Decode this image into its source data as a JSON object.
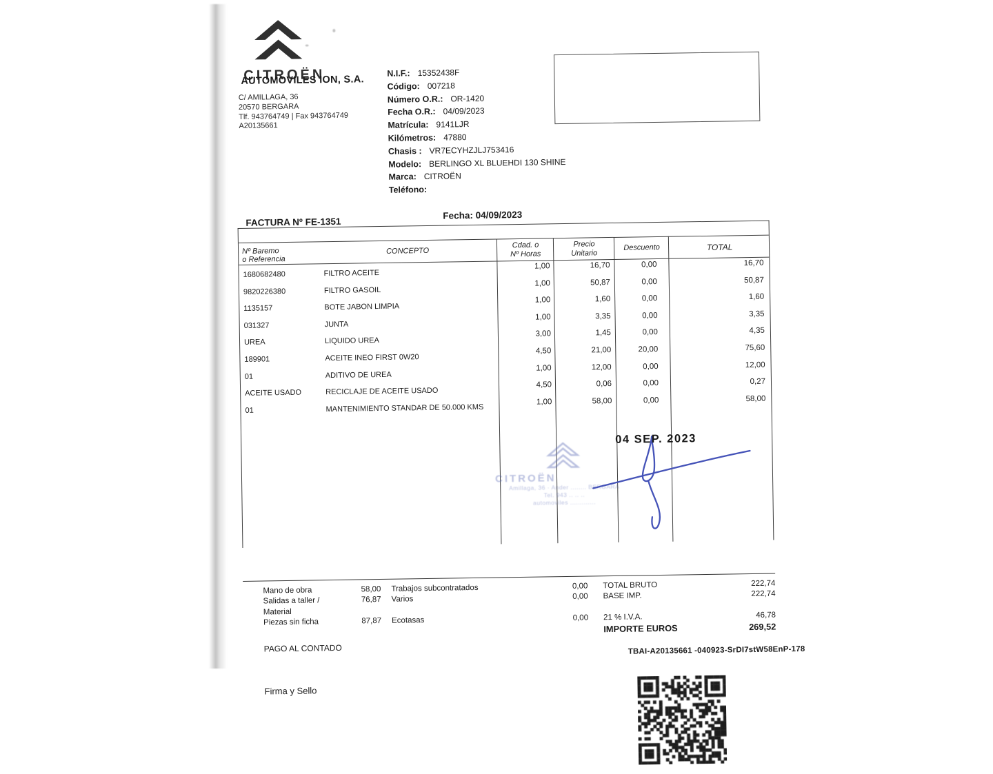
{
  "company": {
    "brand": "CITROËN",
    "name": "AUTOMOVILES ION, S.A.",
    "address_line1": "C/ AMILLAGA, 36",
    "address_line2": "20570 BERGARA",
    "address_line3": "Tlf. 943764749 | Fax 943764749",
    "address_line4": "A20135661"
  },
  "fields": [
    {
      "label": "N.I.F.:",
      "value": "15352438F"
    },
    {
      "label": "Código:",
      "value": "007218"
    },
    {
      "label": "Número O.R.:",
      "value": "OR-1420"
    },
    {
      "label": "Fecha O.R.:",
      "value": "04/09/2023"
    },
    {
      "label": "Matrícula:",
      "value": "9141LJR"
    },
    {
      "label": "Kilómetros:",
      "value": "47880"
    },
    {
      "label": "Chasis :",
      "value": "VR7ECYHZJLJ753416"
    },
    {
      "label": "Modelo:",
      "value": "BERLINGO XL BLUEHDI 130 SHINE"
    },
    {
      "label": "Marca:",
      "value": "CITROËN"
    },
    {
      "label": "Teléfono:",
      "value": ""
    }
  ],
  "invoice_header": {
    "title": "FACTURA Nº FE-1351",
    "date": "Fecha: 04/09/2023"
  },
  "table": {
    "headers": {
      "ref_line1": "Nº Baremo",
      "ref_line2": "o Referencia",
      "concept": "CONCEPTO",
      "qty_line1": "Cdad. o",
      "qty_line2": "Nº Horas",
      "price_line1": "Precio",
      "price_line2": "Unitario",
      "discount": "Descuento",
      "total": "TOTAL"
    },
    "rows": [
      {
        "ref": "1680682480",
        "concept": "FILTRO ACEITE",
        "qty": "1,00",
        "price": "16,70",
        "discount": "0,00",
        "total": "16,70"
      },
      {
        "ref": "9820226380",
        "concept": "FILTRO GASOIL",
        "qty": "1,00",
        "price": "50,87",
        "discount": "0,00",
        "total": "50,87"
      },
      {
        "ref": "1135157",
        "concept": "BOTE JABON LIMPIA",
        "qty": "1,00",
        "price": "1,60",
        "discount": "0,00",
        "total": "1,60"
      },
      {
        "ref": "031327",
        "concept": "JUNTA",
        "qty": "1,00",
        "price": "3,35",
        "discount": "0,00",
        "total": "3,35"
      },
      {
        "ref": "UREA",
        "concept": "LIQUIDO UREA",
        "qty": "3,00",
        "price": "1,45",
        "discount": "0,00",
        "total": "4,35"
      },
      {
        "ref": "189901",
        "concept": "ACEITE INEO FIRST 0W20",
        "qty": "4,50",
        "price": "21,00",
        "discount": "20,00",
        "total": "75,60"
      },
      {
        "ref": "01",
        "concept": "ADITIVO DE UREA",
        "qty": "1,00",
        "price": "12,00",
        "discount": "0,00",
        "total": "12,00"
      },
      {
        "ref": "ACEITE USADO",
        "concept": "RECICLAJE DE ACEITE USADO",
        "qty": "4,50",
        "price": "0,06",
        "discount": "0,00",
        "total": "0,27"
      },
      {
        "ref": "01",
        "concept": "MANTENIMIENTO STANDAR DE 50.000 KMS",
        "qty": "1,00",
        "price": "58,00",
        "discount": "0,00",
        "total": "58,00"
      }
    ]
  },
  "stamps": {
    "date_stamp": "04 SEP. 2023",
    "dealer_stamp": {
      "brand": "CITROËN",
      "line1": "Amillaga, 36 · Ander ........ BERGARA",
      "line2": "Tel. 943 .. .. ..",
      "line3": "automoviles ............."
    }
  },
  "summary": {
    "rows": [
      {
        "label_a": "Mano de obra",
        "value_a": "58,00",
        "label_b": "Trabajos subcontratados",
        "value_b": "0,00",
        "label_c": "TOTAL BRUTO",
        "value_c": "222,74",
        "bold": false
      },
      {
        "label_a": "Salidas a taller / Material",
        "value_a": "76,87",
        "label_b": "Varios",
        "value_b": "0,00",
        "label_c": "BASE IMP.",
        "value_c": "222,74",
        "bold": false
      },
      {
        "label_a": "Piezas sin ficha",
        "value_a": "87,87",
        "label_b": "Ecotasas",
        "value_b": "0,00",
        "label_c": "21 % I.V.A.",
        "value_c": "46,78",
        "bold": false
      },
      {
        "label_a": "",
        "value_a": "",
        "label_b": "",
        "value_b": "",
        "label_c": "IMPORTE EUROS",
        "value_c": "269,52",
        "bold": true
      }
    ],
    "payment_note": "PAGO AL CONTADO"
  },
  "footer": {
    "tbai_code": "TBAI-A20135661 -040923-SrDI7stW58EnP-178",
    "signature_label": "Firma y Sello"
  }
}
